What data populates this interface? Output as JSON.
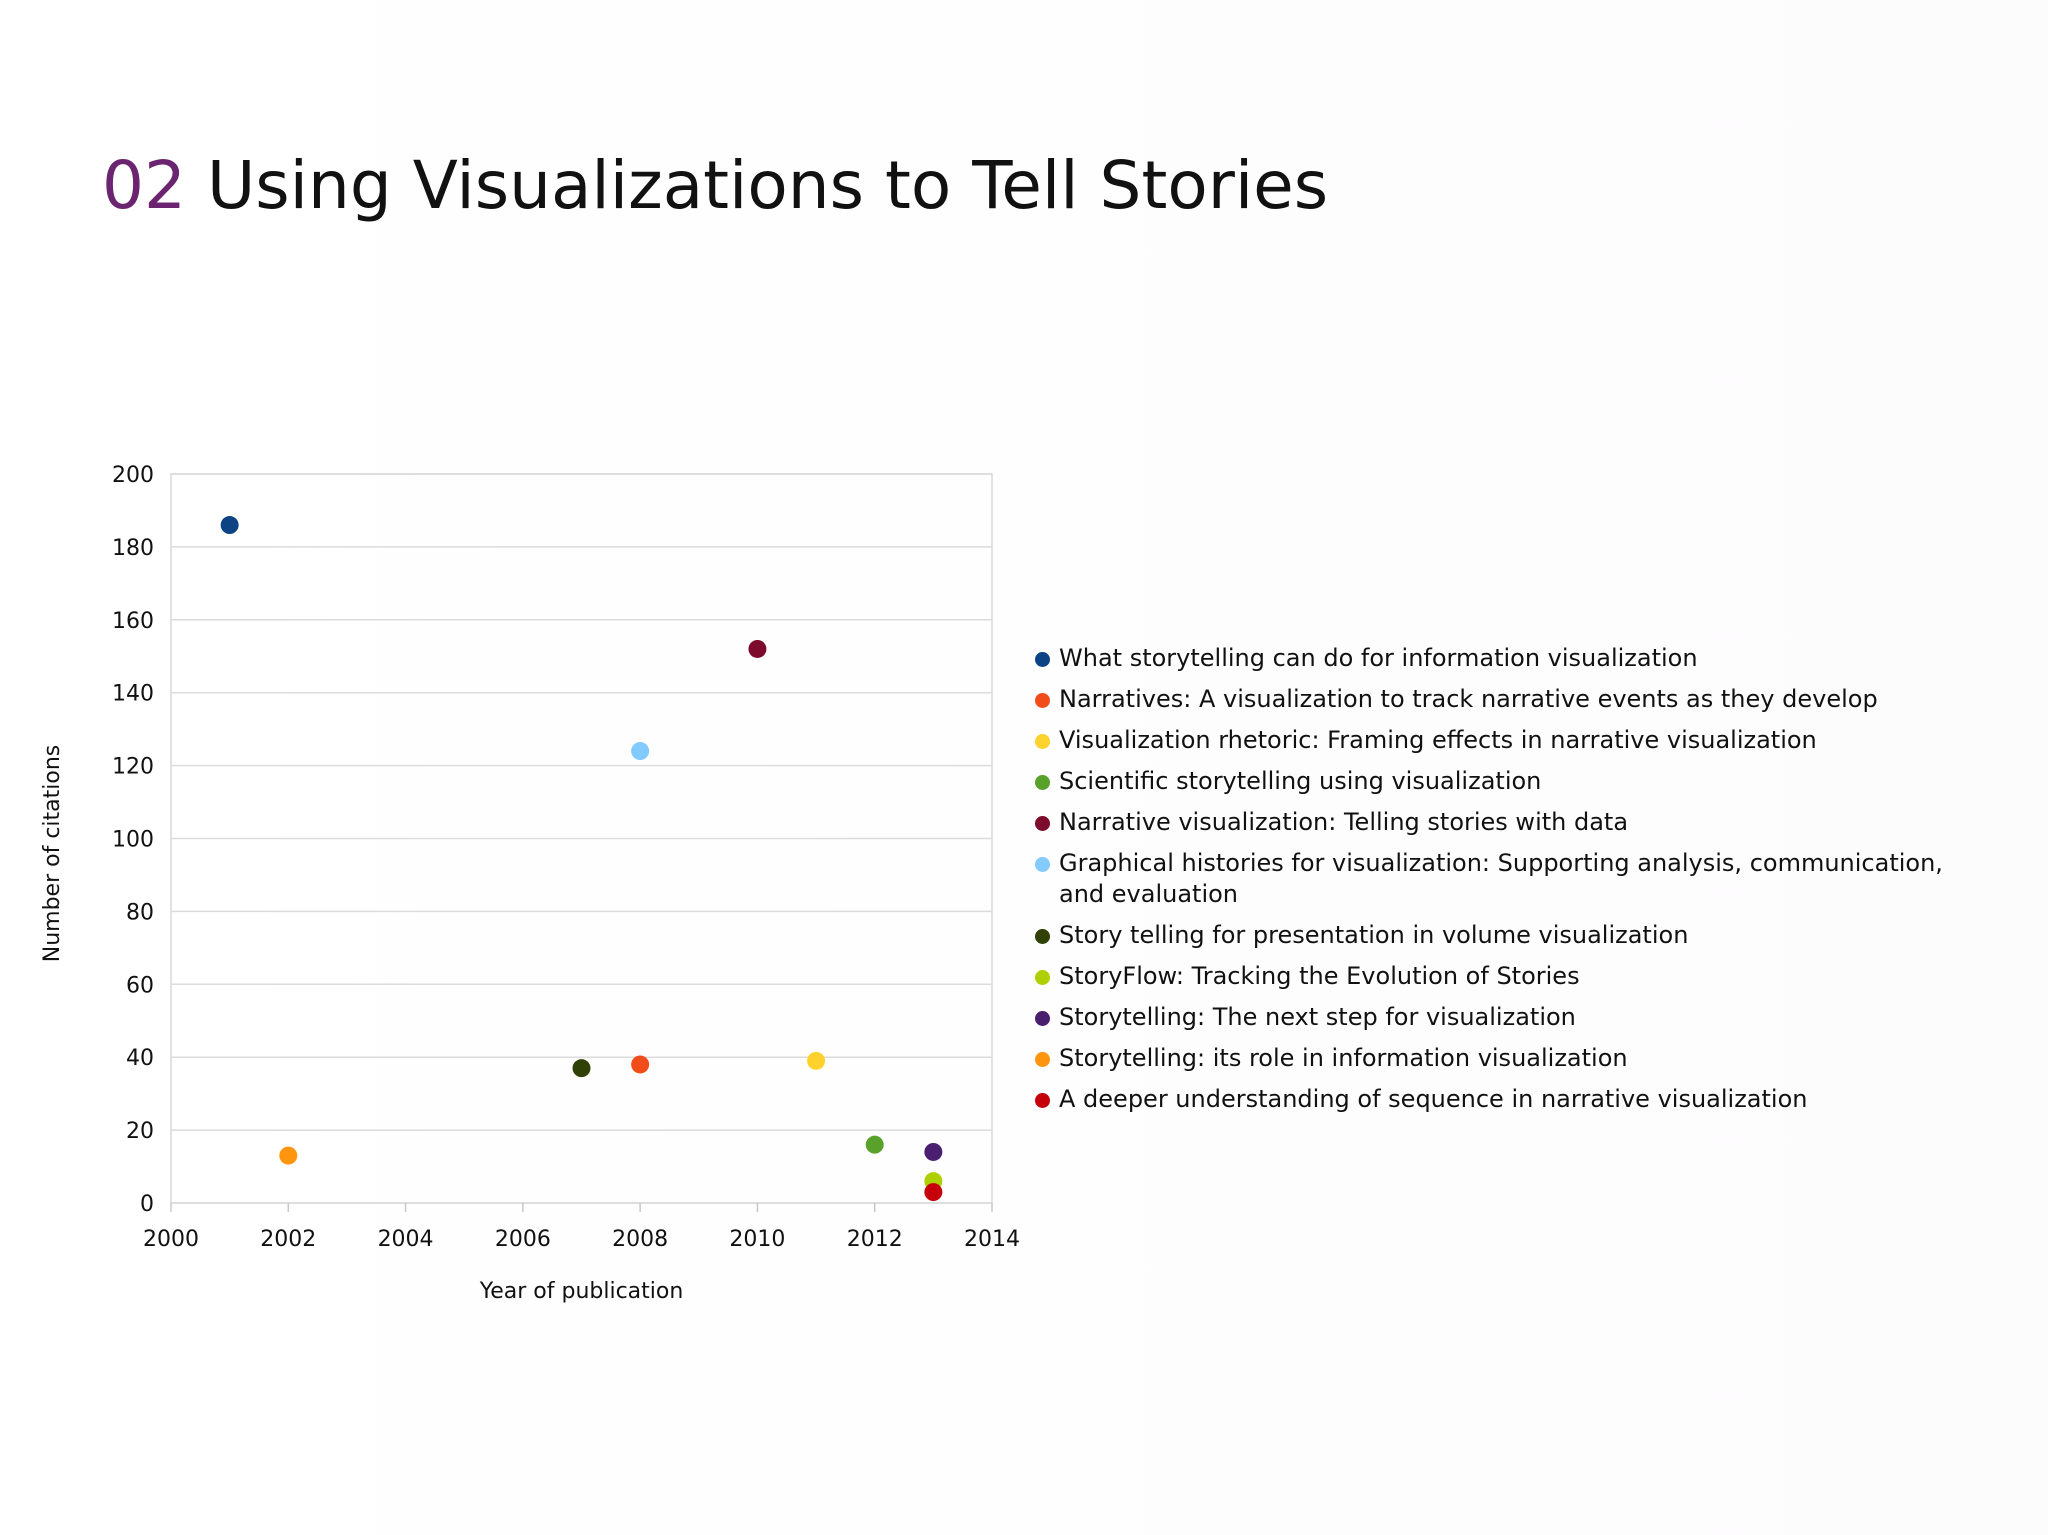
{
  "slide": {
    "title_number": "02",
    "title_text": "Using Visualizations to Tell Stories"
  },
  "chart_data": {
    "type": "scatter",
    "xlabel": "Year of publication",
    "ylabel": "Number of citations",
    "xlim": [
      2000,
      2014
    ],
    "ylim": [
      0,
      200
    ],
    "x_ticks": [
      2000,
      2002,
      2004,
      2006,
      2008,
      2010,
      2012,
      2014
    ],
    "y_ticks": [
      0,
      20,
      40,
      60,
      80,
      100,
      120,
      140,
      160,
      180,
      200
    ],
    "grid": "horizontal",
    "legend_position": "right",
    "series": [
      {
        "name": "What storytelling can do for information visualization",
        "color": "#0b4384",
        "x": 2001,
        "y": 186
      },
      {
        "name": "Narratives: A visualization to track narrative events as they develop",
        "color": "#f14d1a",
        "x": 2008,
        "y": 38
      },
      {
        "name": "Visualization rhetoric: Framing effects in narrative visualization",
        "color": "#fdd22d",
        "x": 2011,
        "y": 39
      },
      {
        "name": "Scientific storytelling using visualization",
        "color": "#58a12a",
        "x": 2012,
        "y": 16
      },
      {
        "name": "Narrative visualization: Telling stories with data",
        "color": "#7d0b2b",
        "x": 2010,
        "y": 152
      },
      {
        "name": "Graphical histories for visualization: Supporting analysis, communication, and evaluation",
        "color": "#83caff",
        "x": 2008,
        "y": 124
      },
      {
        "name": "Story telling for presentation in volume visualization",
        "color": "#314004",
        "x": 2007,
        "y": 37
      },
      {
        "name": "StoryFlow: Tracking the Evolution of Stories",
        "color": "#aecf00",
        "x": 2013,
        "y": 6
      },
      {
        "name": "Storytelling: The next step for visualization",
        "color": "#4b1f6f",
        "x": 2013,
        "y": 14
      },
      {
        "name": "Storytelling: its role in information visualization",
        "color": "#ff950e",
        "x": 2002,
        "y": 13
      },
      {
        "name": "A deeper understanding of sequence in narrative visualization",
        "color": "#c5000b",
        "x": 2013,
        "y": 3
      }
    ]
  }
}
